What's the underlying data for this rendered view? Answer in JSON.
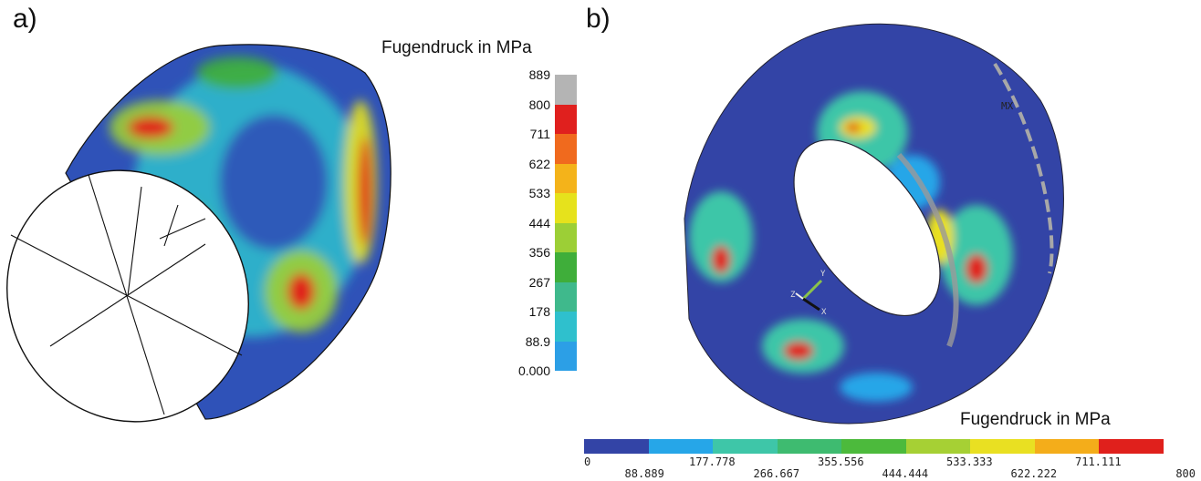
{
  "panels": [
    {
      "label": "a)",
      "legend_title": "Fugendruck  in MPa"
    },
    {
      "label": "b)",
      "legend_title": "Fugendruck  in MPa",
      "annotations": {
        "mx": "MX",
        "triad_y": "Y",
        "triad_z": "Z",
        "triad_x": "X"
      }
    }
  ],
  "legend_a": {
    "levels": [
      "889",
      "800",
      "711",
      "622",
      "533",
      "444",
      "356",
      "267",
      "178",
      "88.9",
      "0.000"
    ],
    "colors": [
      "#b4b4b4",
      "#e0201e",
      "#f06a1e",
      "#f4b31a",
      "#e6e21c",
      "#9ccf36",
      "#3fae3a",
      "#3fb98c",
      "#2fc0cd",
      "#2c9fe6",
      "#2f52b8"
    ]
  },
  "legend_b": {
    "levels": [
      "0",
      "88.889",
      "177.778",
      "266.667",
      "355.556",
      "444.444",
      "533.333",
      "622.222",
      "711.111",
      "800"
    ],
    "colors": [
      "#3344a6",
      "#26a6e8",
      "#3ec6a8",
      "#3ebb70",
      "#4cba3c",
      "#a6d034",
      "#e9e022",
      "#f4ad1a",
      "#e0201c"
    ]
  }
}
